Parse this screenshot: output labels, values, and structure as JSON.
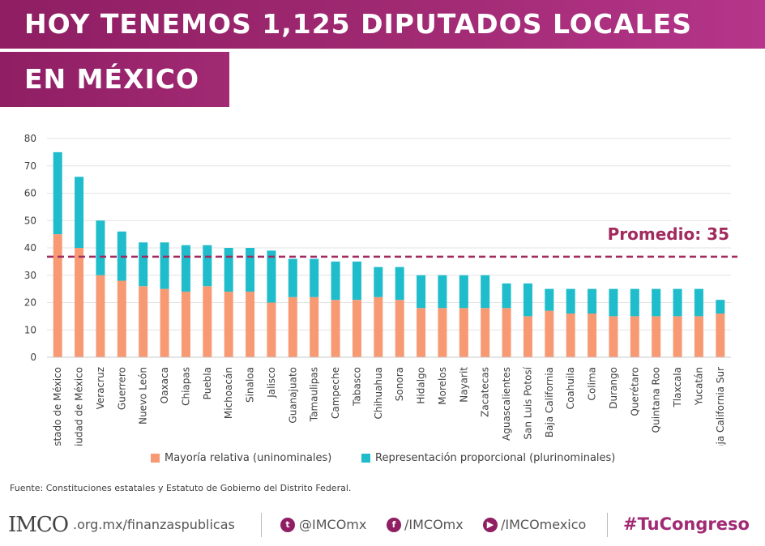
{
  "header": {
    "line1": "HOY TENEMOS 1,125 DIPUTADOS LOCALES",
    "line2": "EN MÉXICO"
  },
  "colors": {
    "brand": "#a12a73",
    "mayoria": "#f79a74",
    "representacion": "#1fbccc",
    "average_line": "#a12a5e"
  },
  "chart_data": {
    "type": "bar",
    "stacked": true,
    "categories": [
      "Estado de México",
      "Ciudad de México",
      "Veracruz",
      "Guerrero",
      "Nuevo León",
      "Oaxaca",
      "Chiapas",
      "Puebla",
      "Michoacán",
      "Sinaloa",
      "Jalisco",
      "Guanajuato",
      "Tamaulipas",
      "Campeche",
      "Tabasco",
      "Chihuahua",
      "Sonora",
      "Hidalgo",
      "Morelos",
      "Nayarit",
      "Zacatecas",
      "Aguascalientes",
      "San Luis Potosí",
      "Baja California",
      "Coahuila",
      "Colima",
      "Durango",
      "Querétaro",
      "Quintana Roo",
      "Tlaxcala",
      "Yucatán",
      "Baja California Sur"
    ],
    "series": [
      {
        "name": "Mayoría relativa (uninominales)",
        "values": [
          45,
          40,
          30,
          28,
          26,
          25,
          24,
          26,
          24,
          24,
          20,
          22,
          22,
          21,
          21,
          22,
          21,
          18,
          18,
          18,
          18,
          18,
          15,
          17,
          16,
          16,
          15,
          15,
          15,
          15,
          15,
          16
        ]
      },
      {
        "name": "Representación proporcional (plurinominales)",
        "values": [
          30,
          26,
          20,
          18,
          16,
          17,
          17,
          15,
          16,
          16,
          19,
          14,
          14,
          14,
          14,
          11,
          12,
          12,
          12,
          12,
          12,
          9,
          12,
          8,
          9,
          9,
          10,
          10,
          10,
          10,
          10,
          5
        ]
      }
    ],
    "yticks": [
      0,
      10,
      20,
      30,
      40,
      50,
      60,
      70,
      80
    ],
    "ylim": [
      0,
      80
    ],
    "average": {
      "value": 35,
      "label": "Promedio: 35"
    },
    "grid": true,
    "legend_position": "bottom"
  },
  "legend": {
    "mayoria_label": "Mayoría relativa (uninominales)",
    "representacion_label": "Representación proporcional (plurinominales)"
  },
  "source": "Fuente: Constituciones estatales y Estatuto de Gobierno del Distrito Federal.",
  "footer": {
    "logo": "IMCO",
    "site": ".org.mx/finanzaspublicas",
    "twitter_handle": "@IMCOmx",
    "facebook_handle": "/IMCOmx",
    "youtube_handle": "/IMCOmexico",
    "hashtag": "#TuCongreso"
  }
}
